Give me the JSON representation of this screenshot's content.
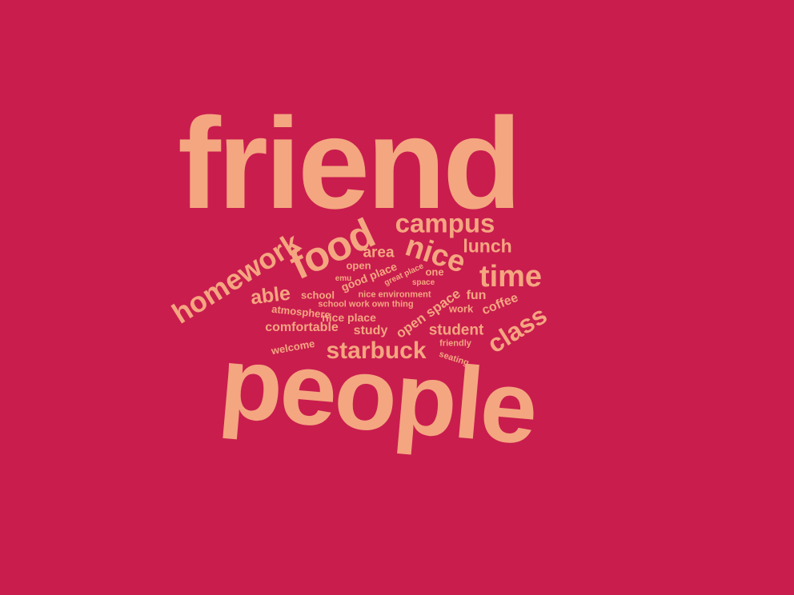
{
  "colors": {
    "background": "#C91D4E",
    "word": "#F4A680"
  },
  "words": [
    {
      "text": "friend"
    },
    {
      "text": "people"
    },
    {
      "text": "food"
    },
    {
      "text": "homework"
    },
    {
      "text": "campus"
    },
    {
      "text": "nice"
    },
    {
      "text": "time"
    },
    {
      "text": "class"
    },
    {
      "text": "starbuck"
    },
    {
      "text": "lunch"
    },
    {
      "text": "able"
    },
    {
      "text": "area"
    },
    {
      "text": "student"
    },
    {
      "text": "comfortable"
    },
    {
      "text": "study"
    },
    {
      "text": "open space"
    },
    {
      "text": "coffee"
    },
    {
      "text": "nice place"
    },
    {
      "text": "fun"
    },
    {
      "text": "atmosphere"
    },
    {
      "text": "school"
    },
    {
      "text": "good place"
    },
    {
      "text": "open"
    },
    {
      "text": "one"
    },
    {
      "text": "welcome"
    },
    {
      "text": "work"
    },
    {
      "text": "great place"
    },
    {
      "text": "emu"
    },
    {
      "text": "space"
    },
    {
      "text": "nice environment"
    },
    {
      "text": "school work own thing"
    },
    {
      "text": "friendly"
    },
    {
      "text": "seating"
    }
  ]
}
